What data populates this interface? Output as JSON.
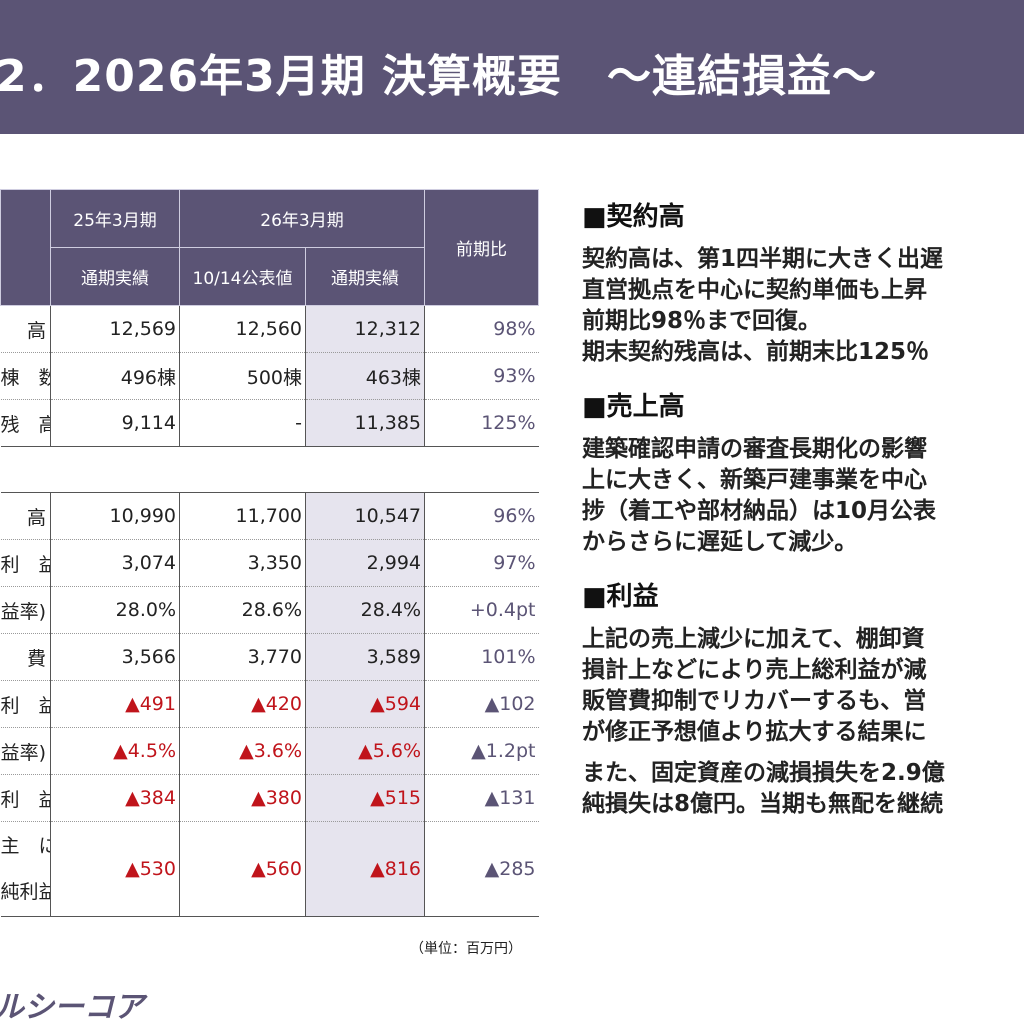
{
  "title": "2．2026年3月期 決算概要　～連結損益～",
  "table": {
    "header": {
      "fy25": "25年3月期",
      "fy26": "26年3月期",
      "ratio": "前期比",
      "actual25": "通期実績",
      "forecast": "10/14公表値",
      "actual26": "通期実績"
    },
    "rows": [
      {
        "label": "高",
        "v1": "12,569",
        "v2": "12,560",
        "v3": "12,312",
        "ratio": "98%"
      },
      {
        "label": "棟　数",
        "v1": "496棟",
        "v2": "500棟",
        "v3": "463棟",
        "ratio": "93%"
      },
      {
        "label": "残　高",
        "v1": "9,114",
        "v2": "-",
        "v3": "11,385",
        "ratio": "125%"
      },
      {
        "label": "高",
        "v1": "10,990",
        "v2": "11,700",
        "v3": "10,547",
        "ratio": "96%"
      },
      {
        "label": "利　益",
        "v1": "3,074",
        "v2": "3,350",
        "v3": "2,994",
        "ratio": "97%"
      },
      {
        "label": "益率)",
        "v1": "28.0%",
        "v2": "28.6%",
        "v3": "28.4%",
        "ratio": "+0.4pt"
      },
      {
        "label": "費",
        "v1": "3,566",
        "v2": "3,770",
        "v3": "3,589",
        "ratio": "101%"
      },
      {
        "label": "利　益",
        "v1": "▲491",
        "v2": "▲420",
        "v3": "▲594",
        "ratio": "▲102"
      },
      {
        "label": "益率)",
        "v1": "▲4.5%",
        "v2": "▲3.6%",
        "v3": "▲5.6%",
        "ratio": "▲1.2pt"
      },
      {
        "label": "利　益",
        "v1": "▲384",
        "v2": "▲380",
        "v3": "▲515",
        "ratio": "▲131"
      },
      {
        "label_a": "主　に",
        "label_b": "純利益",
        "v1": "▲530",
        "v2": "▲560",
        "v3": "▲816",
        "ratio": "▲285"
      }
    ],
    "unit": "（単位：百万円）"
  },
  "logo": "ルシーコア",
  "sections": [
    {
      "heading": "■契約高",
      "paras": [
        [
          "契約高は、第1四半期に大きく出遅",
          "直営拠点を中心に契約単価も上昇",
          "前期比98％まで回復。",
          "期末契約残高は、前期末比125％"
        ]
      ]
    },
    {
      "heading": "■売上高",
      "paras": [
        [
          "建築確認申請の審査長期化の影響",
          "上に大きく、新築戸建事業を中心",
          "捗（着工や部材納品）は10月公表",
          "からさらに遅延して減少。"
        ]
      ]
    },
    {
      "heading": "■利益",
      "paras": [
        [
          "上記の売上減少に加えて、棚卸資",
          "損計上などにより売上総利益が減",
          "販管費抑制でリカバーするも、営",
          "が修正予想値より拡大する結果に"
        ],
        [
          "また、固定資産の減損損失を2.9億",
          "純損失は8億円。当期も無配を継続"
        ]
      ]
    }
  ],
  "colors": {
    "accent": "#5b5475",
    "negative": "#c0141b",
    "highlight": "#e6e4ee"
  }
}
